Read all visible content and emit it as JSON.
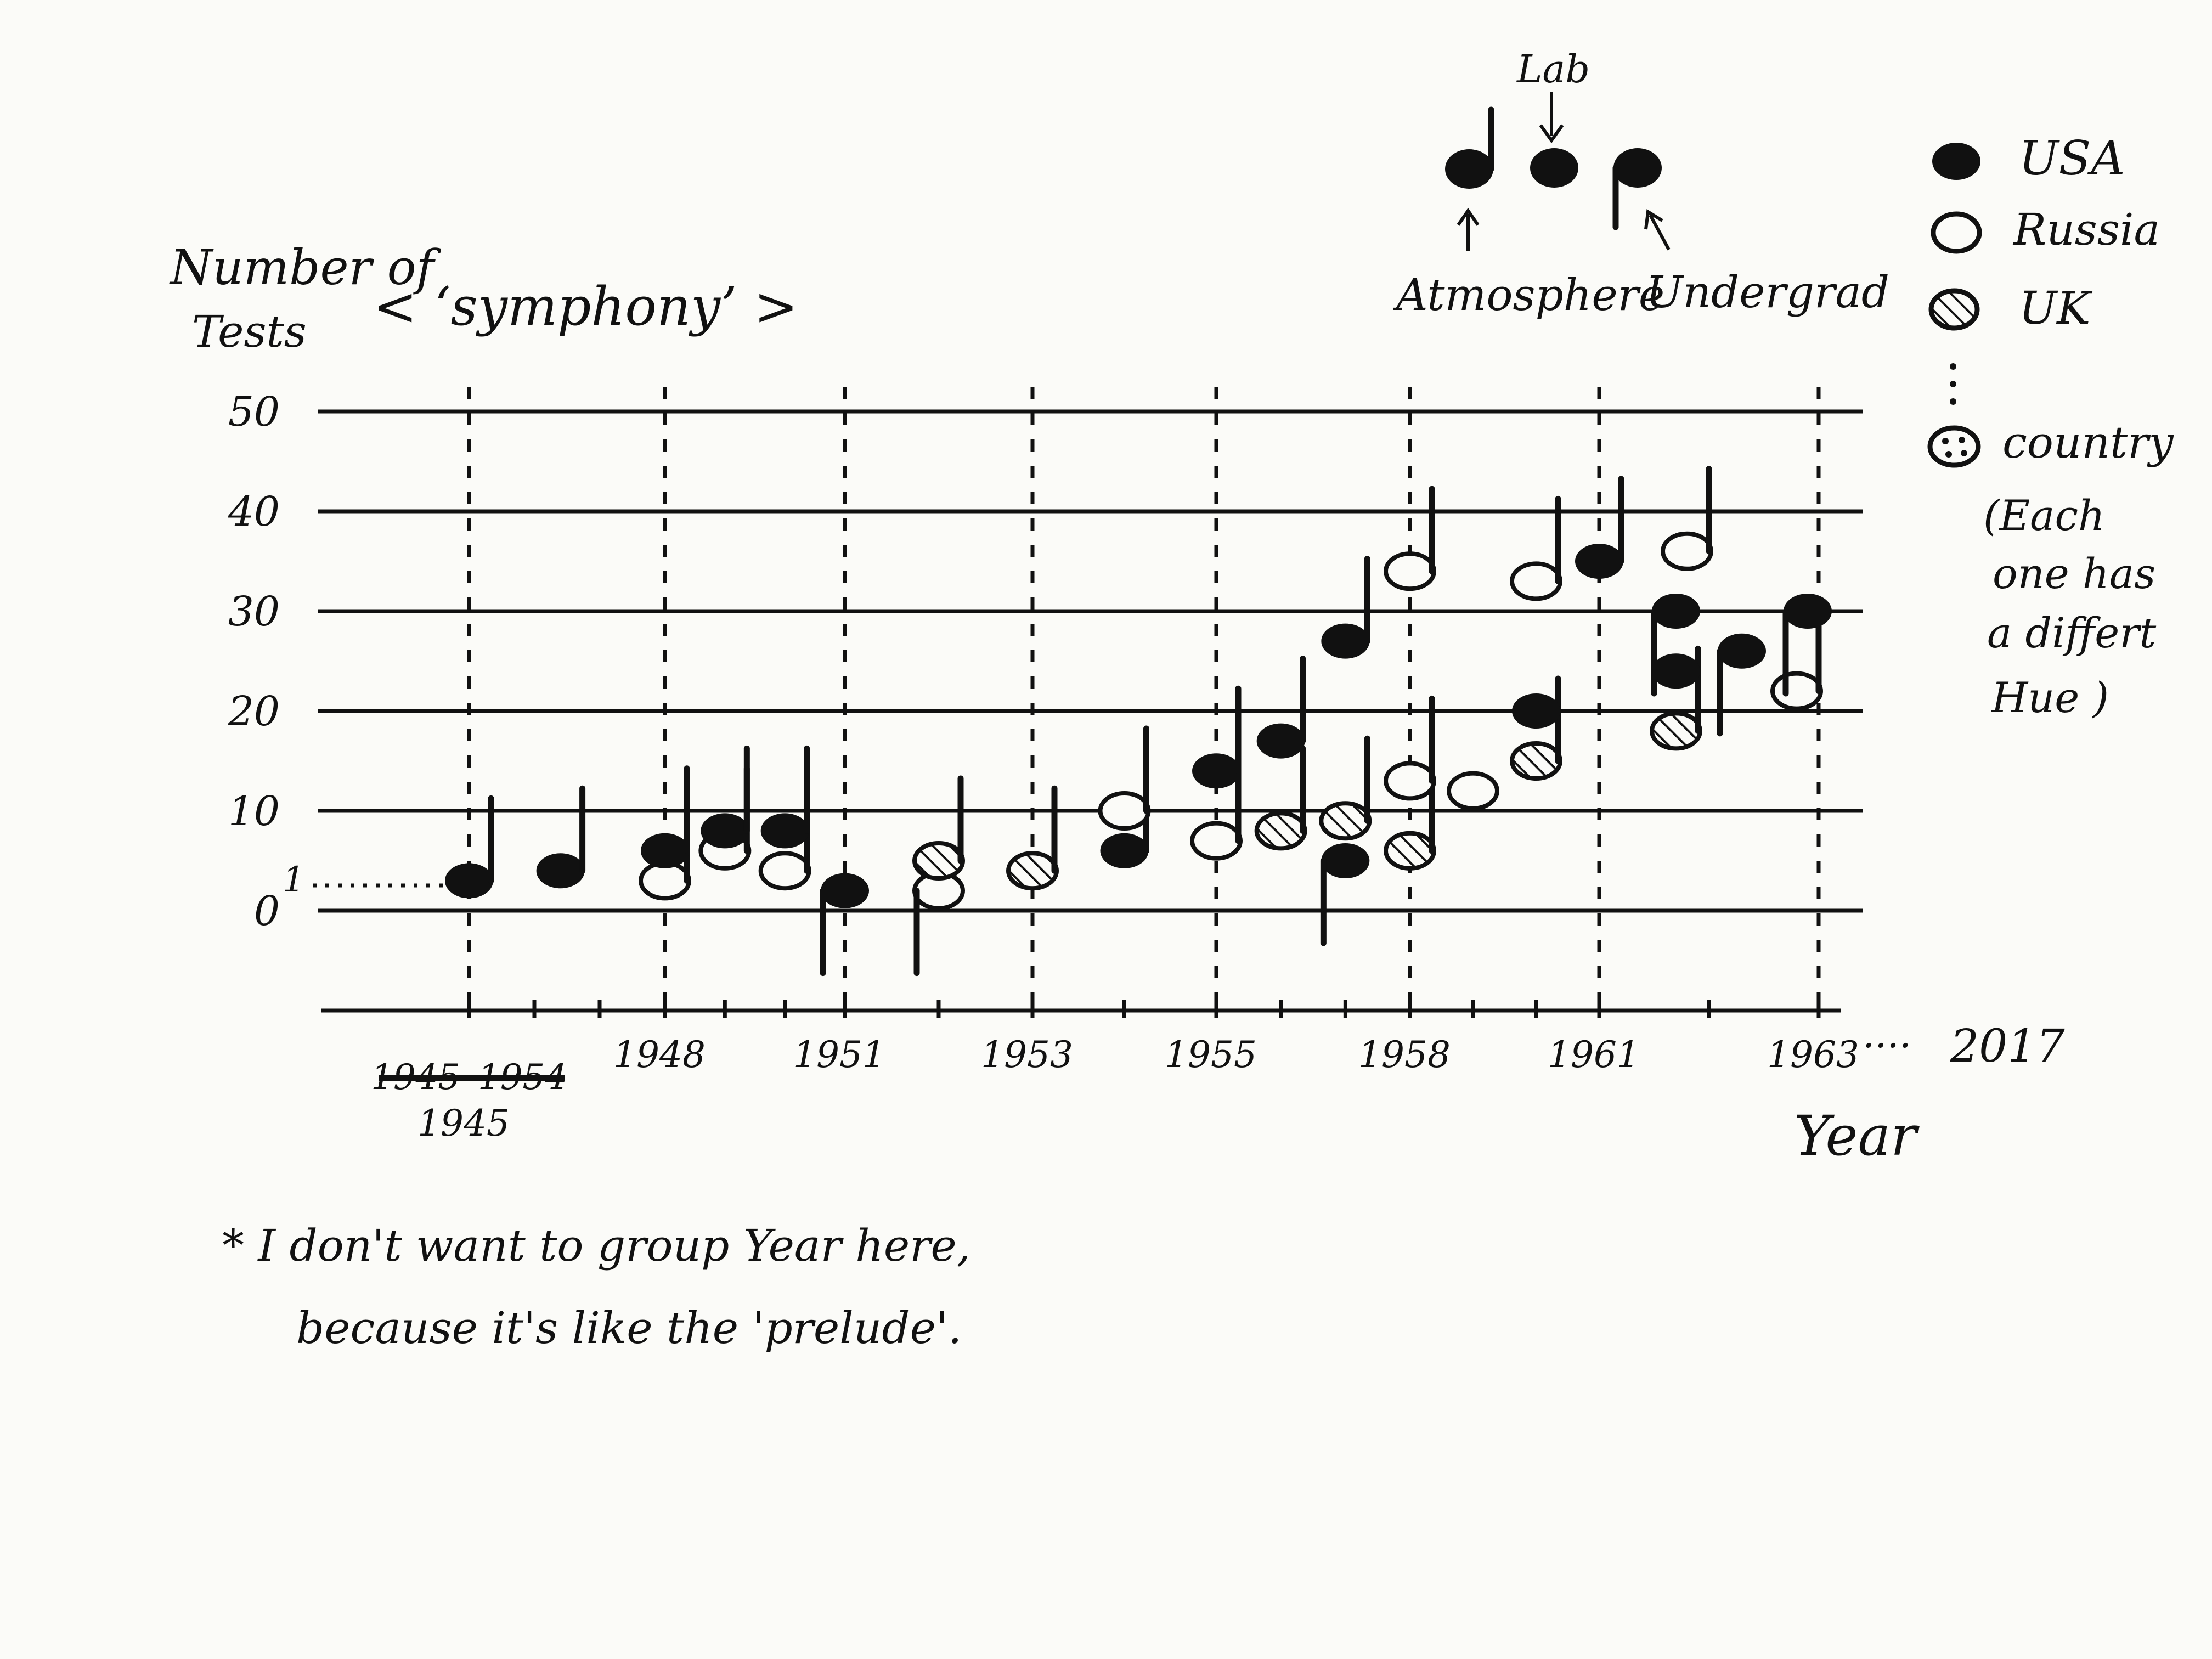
{
  "chart_data": {
    "type": "scatter",
    "title": "< ‘symphony’ >",
    "ylabel": [
      "Number of",
      "Tests"
    ],
    "xlabel": "Year",
    "y_ticks": [
      0,
      10,
      20,
      30,
      40,
      50
    ],
    "y_ticks_text": [
      "0",
      "10",
      "20",
      "30",
      "40",
      "50"
    ],
    "ylim": [
      -10,
      50
    ],
    "zero_extra_mark": "1",
    "x_ticks": [
      {
        "label": "1945",
        "struck": "1945–1954"
      },
      {
        "label": "1948"
      },
      {
        "label": "1951"
      },
      {
        "label": "1953"
      },
      {
        "label": "1955"
      },
      {
        "label": "1958"
      },
      {
        "label": "1961"
      },
      {
        "label": "1963"
      }
    ],
    "x_axis_end": {
      "dots": "····",
      "label": "2017"
    },
    "grid": true,
    "legend_position": "right",
    "legend": [
      {
        "shape": "filled",
        "label": "USA"
      },
      {
        "shape": "open",
        "label": "Russia"
      },
      {
        "shape": "hatched",
        "label": "UK"
      },
      {
        "shape": "dotted",
        "label": "country",
        "note": [
          "(Each",
          "one has",
          "a differt",
          "Hue )"
        ]
      }
    ],
    "key": {
      "top_label": "Lab",
      "left_label": "Atmosphere",
      "right_label": "Undergrad"
    },
    "footnote": [
      "* I don't want to group Year here,",
      "because it's like the 'prelude'."
    ],
    "notes": [
      {
        "x": 1945.0,
        "y": 3,
        "country": "USA",
        "type": "atmosphere"
      },
      {
        "x": 1946.4,
        "y": 4,
        "country": "USA",
        "type": "atmosphere"
      },
      {
        "x": 1948.0,
        "y": 3,
        "country": "Russia",
        "type": "atmosphere"
      },
      {
        "x": 1948.0,
        "y": 6,
        "country": "USA",
        "type": "atmosphere"
      },
      {
        "x": 1949.0,
        "y": 6,
        "country": "Russia",
        "type": "atmosphere"
      },
      {
        "x": 1949.0,
        "y": 8,
        "country": "USA",
        "type": "atmosphere"
      },
      {
        "x": 1950.0,
        "y": 4,
        "country": "Russia",
        "type": "atmosphere"
      },
      {
        "x": 1950.0,
        "y": 8,
        "country": "USA",
        "type": "atmosphere"
      },
      {
        "x": 1951.0,
        "y": 2,
        "country": "USA",
        "type": "underground"
      },
      {
        "x": 1952.0,
        "y": 2,
        "country": "Russia",
        "type": "underground"
      },
      {
        "x": 1952.0,
        "y": 5,
        "country": "UK",
        "type": "atmosphere"
      },
      {
        "x": 1953.0,
        "y": 4,
        "country": "UK",
        "type": "atmosphere"
      },
      {
        "x": 1954.0,
        "y": 6,
        "country": "USA",
        "type": "atmosphere"
      },
      {
        "x": 1954.0,
        "y": 10,
        "country": "Russia",
        "type": "atmosphere"
      },
      {
        "x": 1955.0,
        "y": 7,
        "country": "Russia",
        "type": "atmosphere"
      },
      {
        "x": 1955.0,
        "y": 14,
        "country": "USA",
        "type": "atmosphere"
      },
      {
        "x": 1956.0,
        "y": 8,
        "country": "UK",
        "type": "atmosphere"
      },
      {
        "x": 1956.0,
        "y": 17,
        "country": "USA",
        "type": "atmosphere"
      },
      {
        "x": 1957.0,
        "y": 5,
        "country": "USA",
        "type": "underground"
      },
      {
        "x": 1957.0,
        "y": 9,
        "country": "UK",
        "type": "atmosphere"
      },
      {
        "x": 1957.0,
        "y": 27,
        "country": "USA",
        "type": "atmosphere"
      },
      {
        "x": 1958.0,
        "y": 6,
        "country": "UK",
        "type": "atmosphere"
      },
      {
        "x": 1958.0,
        "y": 13,
        "country": "Russia",
        "type": "atmosphere"
      },
      {
        "x": 1958.0,
        "y": 34,
        "country": "Russia",
        "type": "atmosphere"
      },
      {
        "x": 1959.0,
        "y": 12,
        "country": "Russia",
        "type": "lab"
      },
      {
        "x": 1960.0,
        "y": 15,
        "country": "UK",
        "type": "atmosphere"
      },
      {
        "x": 1960.0,
        "y": 20,
        "country": "USA",
        "type": "lab"
      },
      {
        "x": 1960.0,
        "y": 33,
        "country": "Russia",
        "type": "atmosphere"
      },
      {
        "x": 1961.0,
        "y": 35,
        "country": "USA",
        "type": "atmosphere"
      },
      {
        "x": 1961.7,
        "y": 18,
        "country": "UK",
        "type": "atmosphere"
      },
      {
        "x": 1961.7,
        "y": 24,
        "country": "USA",
        "type": "lab"
      },
      {
        "x": 1961.7,
        "y": 30,
        "country": "USA",
        "type": "underground"
      },
      {
        "x": 1961.8,
        "y": 36,
        "country": "Russia",
        "type": "atmosphere"
      },
      {
        "x": 1962.3,
        "y": 26,
        "country": "USA",
        "type": "underground"
      },
      {
        "x": 1962.8,
        "y": 22,
        "country": "Russia",
        "type": "atmosphere"
      },
      {
        "x": 1962.9,
        "y": 30,
        "country": "USA",
        "type": "underground"
      }
    ]
  }
}
